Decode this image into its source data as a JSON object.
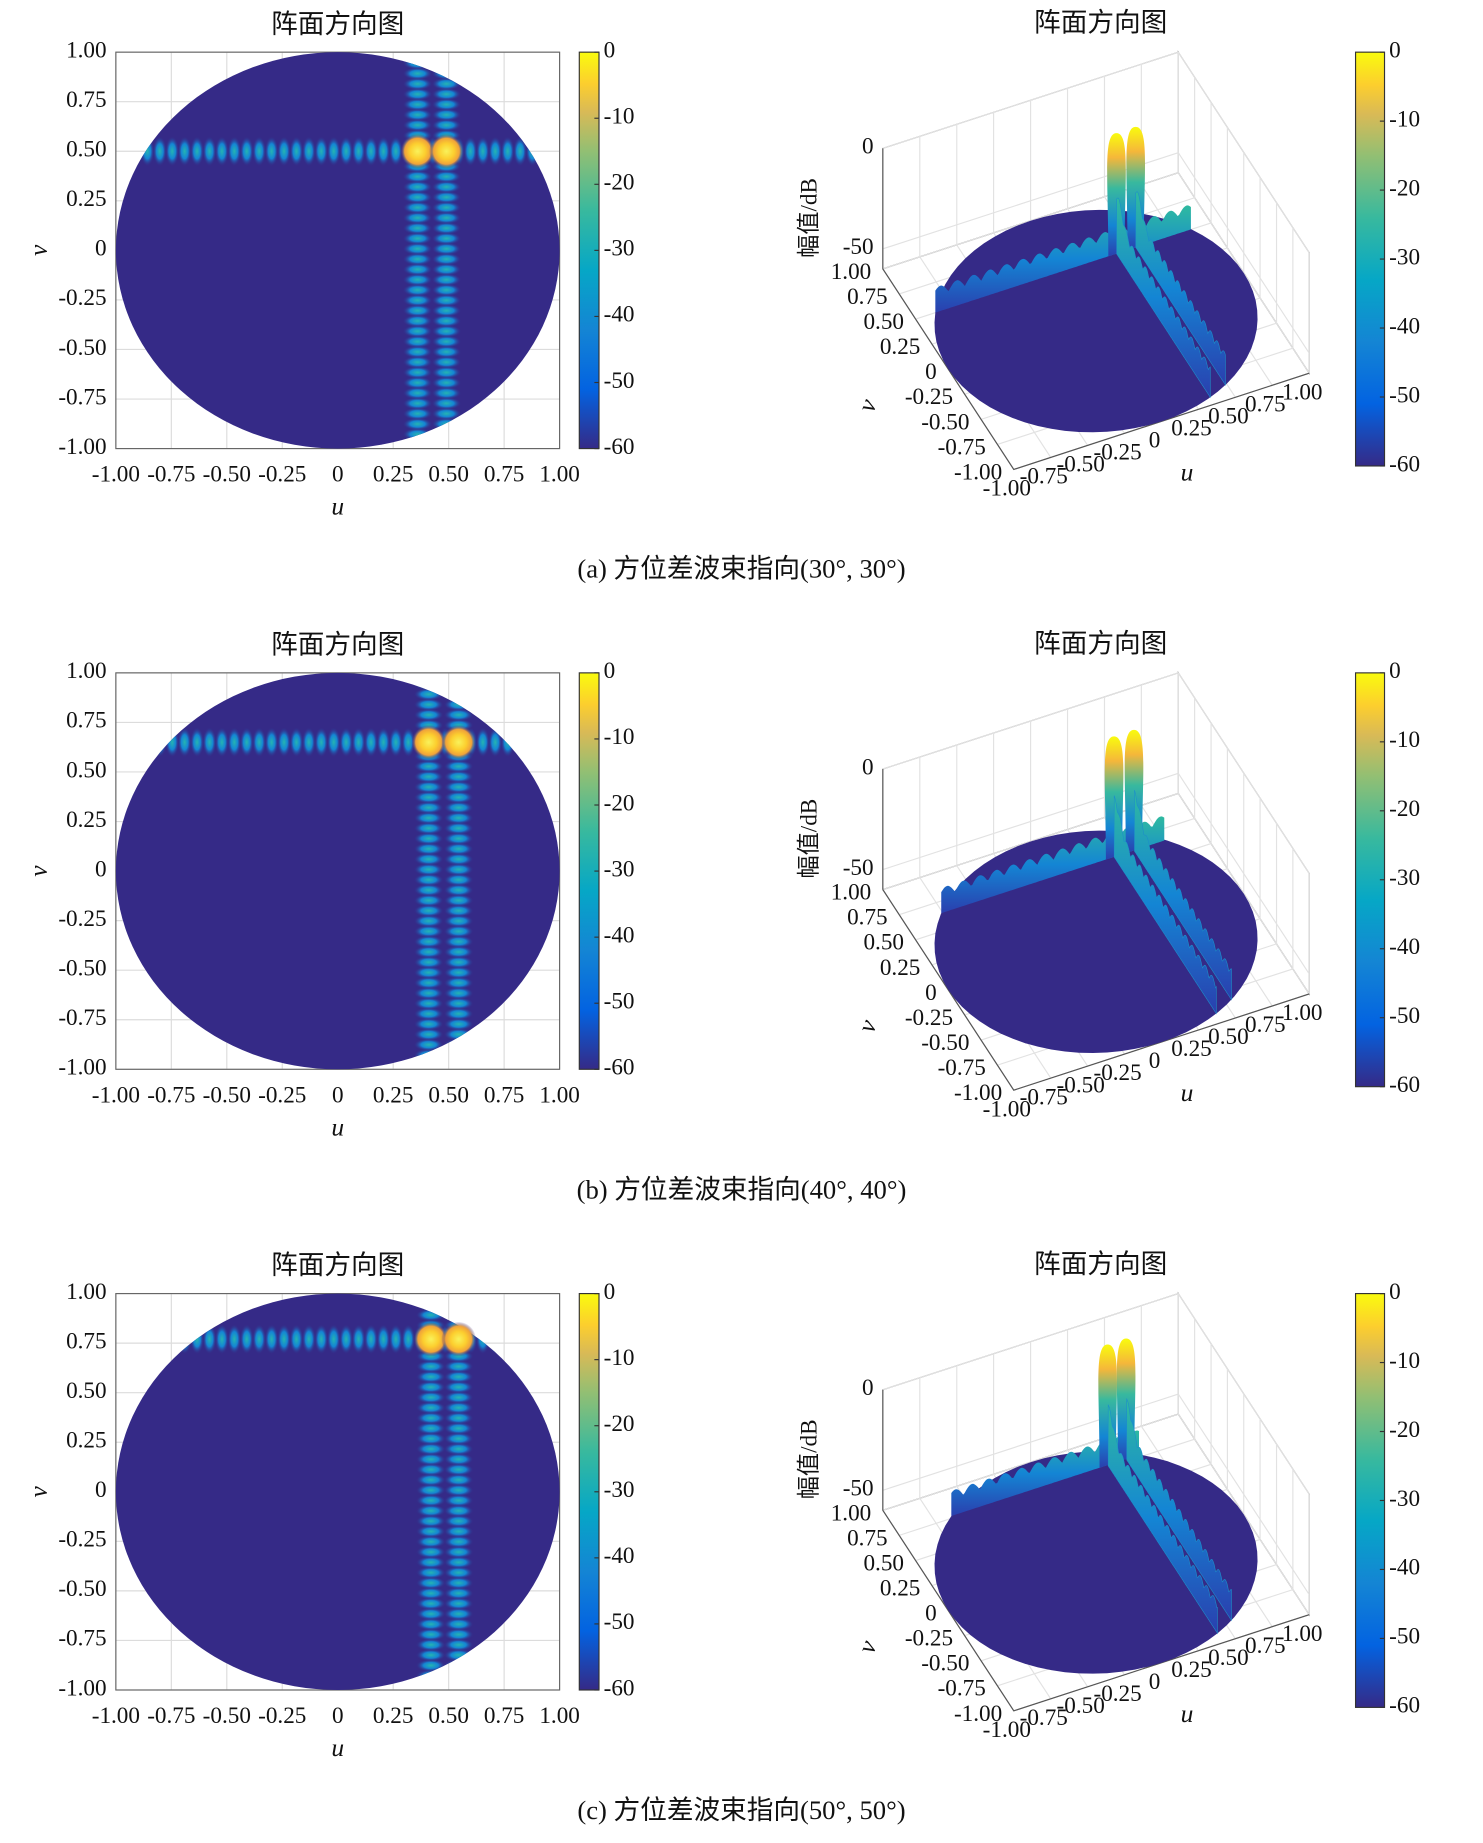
{
  "panels": [
    {
      "caption": "(a)  方位差波束指向(30°, 30°)",
      "heatmap": {
        "type": "heatmap",
        "title": "阵面方向图",
        "xlabel": "u",
        "ylabel": "v",
        "xlim": [
          -1,
          1
        ],
        "ylim": [
          -1,
          1
        ],
        "xticks": [
          {
            "value": -1,
            "label": "-1.00"
          },
          -0.75,
          {
            "value": -0.5,
            "label": "-0.50"
          },
          -0.25,
          0,
          0.25,
          {
            "value": 0.5,
            "label": "0.50"
          },
          0.75,
          {
            "value": 1,
            "label": "1.00"
          }
        ],
        "yticks": [
          {
            "value": -1,
            "label": "-1.00"
          },
          -0.75,
          {
            "value": -0.5,
            "label": "-0.50"
          },
          -0.25,
          0,
          0.25,
          {
            "value": 0.5,
            "label": "0.50"
          },
          0.75,
          {
            "value": 1,
            "label": "1.00"
          }
        ],
        "grid": true,
        "beam_u": [
          0.36,
          0.49
        ],
        "beam_v": 0.5,
        "clim": [
          -60,
          0
        ],
        "cticks": [
          0,
          -10,
          -20,
          -30,
          -40,
          -50,
          -60
        ]
      },
      "surface": {
        "type": "surface",
        "title": "阵面方向图",
        "xlabel": "u",
        "ylabel": "v",
        "zlabel": "幅值/dB",
        "xlim": [
          -1,
          1
        ],
        "ylim": [
          -1,
          1
        ],
        "zlim": [
          -60,
          0
        ],
        "xticks": [
          {
            "value": -1,
            "label": "-1.00"
          },
          -0.75,
          {
            "value": -0.5,
            "label": "-0.50"
          },
          -0.25,
          0,
          0.25,
          {
            "value": 0.5,
            "label": "0.50"
          },
          0.75,
          {
            "value": 1,
            "label": "1.00"
          }
        ],
        "yticks": [
          {
            "value": -1,
            "label": "-1.00"
          },
          -0.75,
          {
            "value": -0.5,
            "label": "-0.50"
          },
          -0.25,
          0,
          0.25,
          {
            "value": 0.5,
            "label": "0.50"
          },
          0.75,
          {
            "value": 1,
            "label": "1.00"
          }
        ],
        "zticks": [
          -50,
          0
        ],
        "grid": true,
        "beam_u": [
          0.36,
          0.49
        ],
        "beam_v": 0.5,
        "clim": [
          -60,
          0
        ],
        "cticks": [
          0,
          -10,
          -20,
          -30,
          -40,
          -50,
          -60
        ]
      }
    },
    {
      "caption": "(b)  方位差波束指向(40°, 40°)",
      "heatmap": {
        "type": "heatmap",
        "title": "阵面方向图",
        "xlabel": "u",
        "ylabel": "v",
        "xlim": [
          -1,
          1
        ],
        "ylim": [
          -1,
          1
        ],
        "xticks": [
          {
            "value": -1,
            "label": "-1.00"
          },
          -0.75,
          {
            "value": -0.5,
            "label": "-0.50"
          },
          -0.25,
          0,
          0.25,
          {
            "value": 0.5,
            "label": "0.50"
          },
          0.75,
          {
            "value": 1,
            "label": "1.00"
          }
        ],
        "yticks": [
          {
            "value": -1,
            "label": "-1.00"
          },
          -0.75,
          {
            "value": -0.5,
            "label": "-0.50"
          },
          -0.25,
          0,
          0.25,
          {
            "value": 0.5,
            "label": "0.50"
          },
          0.75,
          {
            "value": 1,
            "label": "1.00"
          }
        ],
        "grid": true,
        "beam_u": [
          0.41,
          0.545
        ],
        "beam_v": 0.65,
        "clim": [
          -60,
          0
        ],
        "cticks": [
          0,
          -10,
          -20,
          -30,
          -40,
          -50,
          -60
        ]
      },
      "surface": {
        "type": "surface",
        "title": "阵面方向图",
        "xlabel": "u",
        "ylabel": "v",
        "zlabel": "幅值/dB",
        "xlim": [
          -1,
          1
        ],
        "ylim": [
          -1,
          1
        ],
        "zlim": [
          -60,
          0
        ],
        "xticks": [
          {
            "value": -1,
            "label": "-1.00"
          },
          -0.75,
          {
            "value": -0.5,
            "label": "-0.50"
          },
          -0.25,
          0,
          0.25,
          {
            "value": 0.5,
            "label": "0.50"
          },
          0.75,
          {
            "value": 1,
            "label": "1.00"
          }
        ],
        "yticks": [
          {
            "value": -1,
            "label": "-1.00"
          },
          -0.75,
          {
            "value": -0.5,
            "label": "-0.50"
          },
          -0.25,
          0,
          0.25,
          {
            "value": 0.5,
            "label": "0.50"
          },
          0.75,
          {
            "value": 1,
            "label": "1.00"
          }
        ],
        "zticks": [
          -50,
          0
        ],
        "grid": true,
        "beam_u": [
          0.41,
          0.545
        ],
        "beam_v": 0.65,
        "clim": [
          -60,
          0
        ],
        "cticks": [
          0,
          -10,
          -20,
          -30,
          -40,
          -50,
          -60
        ]
      }
    },
    {
      "caption": "(c)  方位差波束指向(50°, 50°)",
      "heatmap": {
        "type": "heatmap",
        "title": "阵面方向图",
        "xlabel": "u",
        "ylabel": "v",
        "xlim": [
          -1,
          1
        ],
        "ylim": [
          -1,
          1
        ],
        "xticks": [
          {
            "value": -1,
            "label": "-1.00"
          },
          -0.75,
          {
            "value": -0.5,
            "label": "-0.50"
          },
          -0.25,
          0,
          0.25,
          {
            "value": 0.5,
            "label": "0.50"
          },
          0.75,
          {
            "value": 1,
            "label": "1.00"
          }
        ],
        "yticks": [
          {
            "value": -1,
            "label": "-1.00"
          },
          -0.75,
          {
            "value": -0.5,
            "label": "-0.50"
          },
          -0.25,
          0,
          0.25,
          {
            "value": 0.5,
            "label": "0.50"
          },
          0.75,
          {
            "value": 1,
            "label": "1.00"
          }
        ],
        "grid": true,
        "beam_u": [
          0.42,
          0.545
        ],
        "beam_v": 0.77,
        "clim": [
          -60,
          0
        ],
        "cticks": [
          0,
          -10,
          -20,
          -30,
          -40,
          -50,
          -60
        ]
      },
      "surface": {
        "type": "surface",
        "title": "阵面方向图",
        "xlabel": "u",
        "ylabel": "v",
        "zlabel": "幅值/dB",
        "xlim": [
          -1,
          1
        ],
        "ylim": [
          -1,
          1
        ],
        "zlim": [
          -60,
          0
        ],
        "xticks": [
          {
            "value": -1,
            "label": "-1.00"
          },
          -0.75,
          {
            "value": -0.5,
            "label": "-0.50"
          },
          -0.25,
          0,
          0.25,
          {
            "value": 0.5,
            "label": "0.50"
          },
          0.75,
          {
            "value": 1,
            "label": "1.00"
          }
        ],
        "yticks": [
          {
            "value": -1,
            "label": "-1.00"
          },
          -0.75,
          {
            "value": -0.5,
            "label": "-0.50"
          },
          -0.25,
          0,
          0.25,
          {
            "value": 0.5,
            "label": "0.50"
          },
          0.75,
          {
            "value": 1,
            "label": "1.00"
          }
        ],
        "zticks": [
          -50,
          0
        ],
        "grid": true,
        "beam_u": [
          0.42,
          0.545
        ],
        "beam_v": 0.77,
        "clim": [
          -60,
          0
        ],
        "cticks": [
          0,
          -10,
          -20,
          -30,
          -40,
          -50,
          -60
        ]
      }
    }
  ]
}
